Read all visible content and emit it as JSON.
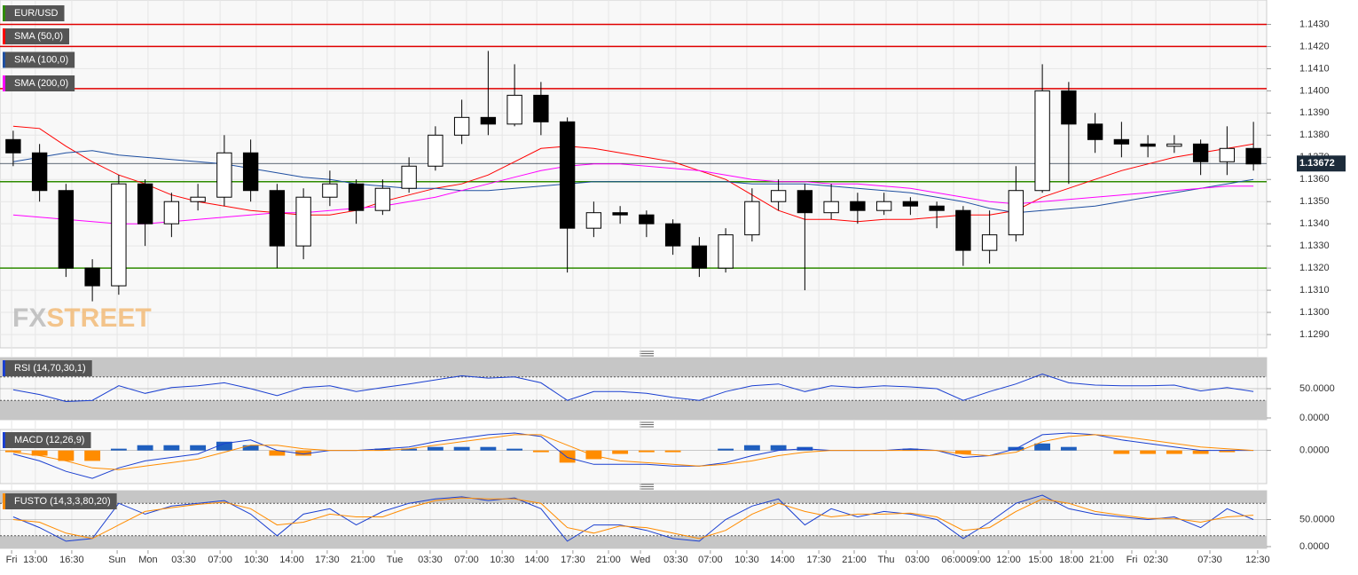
{
  "chart_data": [
    {
      "type": "candlestick",
      "title": "EUR/USD",
      "title_color": "#2e8b00",
      "watermark": [
        "FX",
        "STREET"
      ],
      "xlim": [
        -0.5,
        47.5
      ],
      "xticks": [
        {
          "value": -0.06,
          "label": "Fri"
        },
        {
          "value": 0.84,
          "label": "13:00"
        },
        {
          "value": 2.22,
          "label": "16:30"
        },
        {
          "value": 3.94,
          "label": "Sun"
        },
        {
          "value": 5.11,
          "label": "Mon"
        },
        {
          "value": 6.46,
          "label": "03:30"
        },
        {
          "value": 7.84,
          "label": "07:00"
        },
        {
          "value": 9.21,
          "label": "10:30"
        },
        {
          "value": 10.56,
          "label": "14:00"
        },
        {
          "value": 11.9,
          "label": "17:30"
        },
        {
          "value": 13.25,
          "label": "21:00"
        },
        {
          "value": 14.46,
          "label": "Tue"
        },
        {
          "value": 15.8,
          "label": "03:30"
        },
        {
          "value": 17.18,
          "label": "07:00"
        },
        {
          "value": 18.53,
          "label": "10:30"
        },
        {
          "value": 19.84,
          "label": "14:00"
        },
        {
          "value": 21.21,
          "label": "17:30"
        },
        {
          "value": 22.56,
          "label": "21:00"
        },
        {
          "value": 23.77,
          "label": "Wed"
        },
        {
          "value": 25.11,
          "label": "03:30"
        },
        {
          "value": 26.42,
          "label": "07:00"
        },
        {
          "value": 27.8,
          "label": "10:30"
        },
        {
          "value": 29.15,
          "label": "14:00"
        },
        {
          "value": 30.53,
          "label": "17:30"
        },
        {
          "value": 31.87,
          "label": "21:00"
        },
        {
          "value": 33.08,
          "label": "Thu"
        },
        {
          "value": 34.26,
          "label": "03:00"
        },
        {
          "value": 35.64,
          "label": "06:00"
        },
        {
          "value": 36.58,
          "label": "09:00"
        },
        {
          "value": 37.72,
          "label": "12:00"
        },
        {
          "value": 38.93,
          "label": "15:00"
        },
        {
          "value": 40.1,
          "label": "18:00"
        },
        {
          "value": 41.25,
          "label": "21:00"
        },
        {
          "value": 42.39,
          "label": "Fri"
        },
        {
          "value": 43.3,
          "label": "02:30"
        },
        {
          "value": 45.35,
          "label": "07:30"
        },
        {
          "value": 47.16,
          "label": "12:30"
        }
      ],
      "ylim": [
        1.1284,
        1.1441
      ],
      "yticks": [
        {
          "value": 1.129,
          "label": "1.1290"
        },
        {
          "value": 1.13,
          "label": "1.1300"
        },
        {
          "value": 1.131,
          "label": "1.1310"
        },
        {
          "value": 1.132,
          "label": "1.1320"
        },
        {
          "value": 1.133,
          "label": "1.1330"
        },
        {
          "value": 1.134,
          "label": "1.1340"
        },
        {
          "value": 1.135,
          "label": "1.1350"
        },
        {
          "value": 1.136,
          "label": "1.1360"
        },
        {
          "value": 1.137,
          "label": "1.1370"
        },
        {
          "value": 1.138,
          "label": "1.1380"
        },
        {
          "value": 1.139,
          "label": "1.1390"
        },
        {
          "value": 1.14,
          "label": "1.1400"
        },
        {
          "value": 1.141,
          "label": "1.1410"
        },
        {
          "value": 1.142,
          "label": "1.1420"
        },
        {
          "value": 1.143,
          "label": "1.1430"
        }
      ],
      "grid": true,
      "ohlc": [
        [
          1.1378,
          1.1382,
          1.1366,
          1.1372
        ],
        [
          1.1372,
          1.1376,
          1.135,
          1.1355
        ],
        [
          1.1355,
          1.1358,
          1.1316,
          1.132
        ],
        [
          1.132,
          1.1324,
          1.1305,
          1.1312
        ],
        [
          1.1312,
          1.1362,
          1.1308,
          1.1358
        ],
        [
          1.1358,
          1.136,
          1.133,
          1.134
        ],
        [
          1.134,
          1.1354,
          1.1334,
          1.135
        ],
        [
          1.135,
          1.1358,
          1.1346,
          1.1352
        ],
        [
          1.1352,
          1.138,
          1.1348,
          1.1372
        ],
        [
          1.1372,
          1.1378,
          1.135,
          1.1355
        ],
        [
          1.1355,
          1.1358,
          1.132,
          1.133
        ],
        [
          1.133,
          1.1356,
          1.1324,
          1.1352
        ],
        [
          1.1352,
          1.1364,
          1.1348,
          1.1358
        ],
        [
          1.1358,
          1.136,
          1.134,
          1.1346
        ],
        [
          1.1346,
          1.136,
          1.1344,
          1.1356
        ],
        [
          1.1356,
          1.137,
          1.1354,
          1.1366
        ],
        [
          1.1366,
          1.1384,
          1.1364,
          1.138
        ],
        [
          1.138,
          1.1396,
          1.1376,
          1.1388
        ],
        [
          1.1388,
          1.1418,
          1.138,
          1.1385
        ],
        [
          1.1385,
          1.1412,
          1.1384,
          1.1398
        ],
        [
          1.1398,
          1.1404,
          1.138,
          1.1386
        ],
        [
          1.1386,
          1.1388,
          1.1318,
          1.1338
        ],
        [
          1.1338,
          1.135,
          1.1334,
          1.1345
        ],
        [
          1.1345,
          1.1348,
          1.134,
          1.1344
        ],
        [
          1.1344,
          1.1346,
          1.1334,
          1.134
        ],
        [
          1.134,
          1.1342,
          1.1326,
          1.133
        ],
        [
          1.133,
          1.1334,
          1.1316,
          1.132
        ],
        [
          1.132,
          1.1338,
          1.1318,
          1.1335
        ],
        [
          1.1335,
          1.1356,
          1.1332,
          1.135
        ],
        [
          1.135,
          1.136,
          1.1346,
          1.1355
        ],
        [
          1.1355,
          1.1358,
          1.131,
          1.1345
        ],
        [
          1.1345,
          1.1358,
          1.1342,
          1.135
        ],
        [
          1.135,
          1.1354,
          1.134,
          1.1346
        ],
        [
          1.1346,
          1.1354,
          1.1344,
          1.135
        ],
        [
          1.135,
          1.1352,
          1.1344,
          1.1348
        ],
        [
          1.1348,
          1.135,
          1.1338,
          1.1346
        ],
        [
          1.1346,
          1.1348,
          1.1321,
          1.1328
        ],
        [
          1.1328,
          1.1346,
          1.1322,
          1.1335
        ],
        [
          1.1335,
          1.1366,
          1.1332,
          1.1355
        ],
        [
          1.1355,
          1.1412,
          1.1354,
          1.14
        ],
        [
          1.14,
          1.1404,
          1.1358,
          1.1385
        ],
        [
          1.1385,
          1.139,
          1.1372,
          1.1378
        ],
        [
          1.1378,
          1.1386,
          1.137,
          1.1376
        ],
        [
          1.1376,
          1.138,
          1.137,
          1.1375
        ],
        [
          1.1375,
          1.138,
          1.1372,
          1.1376
        ],
        [
          1.1376,
          1.1378,
          1.1362,
          1.1368
        ],
        [
          1.1368,
          1.1384,
          1.1362,
          1.1374
        ],
        [
          1.1374,
          1.1386,
          1.1364,
          1.1367
        ]
      ],
      "series": [
        {
          "name": "SMA (50,0)",
          "color": "#ff0000",
          "values": [
            1.1384,
            1.1383,
            1.1375,
            1.1368,
            1.1362,
            1.1358,
            1.1353,
            1.135,
            1.1348,
            1.1346,
            1.1345,
            1.1344,
            1.1344,
            1.1346,
            1.135,
            1.1353,
            1.1356,
            1.1358,
            1.1362,
            1.1368,
            1.1374,
            1.1375,
            1.1374,
            1.1372,
            1.137,
            1.1368,
            1.1364,
            1.136,
            1.1353,
            1.1346,
            1.1342,
            1.1342,
            1.1341,
            1.1342,
            1.1342,
            1.1343,
            1.1344,
            1.1344,
            1.1346,
            1.1352,
            1.1356,
            1.136,
            1.1364,
            1.1367,
            1.137,
            1.1372,
            1.1374,
            1.1376
          ]
        },
        {
          "name": "SMA (100,0)",
          "color": "#1f4fa0",
          "values": [
            1.1368,
            1.137,
            1.1372,
            1.1373,
            1.1371,
            1.137,
            1.1369,
            1.1368,
            1.1367,
            1.1365,
            1.1363,
            1.1361,
            1.136,
            1.1358,
            1.1357,
            1.1356,
            1.1356,
            1.1355,
            1.1355,
            1.1356,
            1.1357,
            1.1358,
            1.1359,
            1.1359,
            1.1359,
            1.1359,
            1.1359,
            1.1359,
            1.1358,
            1.1358,
            1.1358,
            1.1357,
            1.1356,
            1.1355,
            1.1354,
            1.1352,
            1.135,
            1.1347,
            1.1345,
            1.1346,
            1.1347,
            1.1348,
            1.135,
            1.1352,
            1.1354,
            1.1356,
            1.1358,
            1.136
          ]
        },
        {
          "name": "SMA (200,0)",
          "color": "#ff00ff",
          "values": [
            1.1344,
            1.1343,
            1.1342,
            1.1341,
            1.134,
            1.134,
            1.1341,
            1.1342,
            1.1343,
            1.1344,
            1.1345,
            1.1345,
            1.1346,
            1.1347,
            1.1348,
            1.135,
            1.1352,
            1.1355,
            1.1358,
            1.1361,
            1.1364,
            1.1366,
            1.1367,
            1.1367,
            1.1366,
            1.1365,
            1.1364,
            1.1362,
            1.136,
            1.1359,
            1.1359,
            1.1358,
            1.1358,
            1.1357,
            1.1356,
            1.1354,
            1.1352,
            1.135,
            1.1349,
            1.135,
            1.1351,
            1.1352,
            1.1353,
            1.1354,
            1.1355,
            1.1356,
            1.1357,
            1.1357
          ]
        }
      ],
      "levels": [
        {
          "value": 1.143,
          "color": "#e00000"
        },
        {
          "value": 1.142,
          "color": "#e00000"
        },
        {
          "value": 1.1401,
          "color": "#e00000"
        },
        {
          "value": 1.1359,
          "color": "#2e8b00"
        },
        {
          "value": 1.132,
          "color": "#2e8b00"
        }
      ],
      "last_price": 1.13672
    },
    {
      "type": "line",
      "title": "RSI (14,70,30,1)",
      "title_color": "#1a3fd0",
      "ylim": [
        0,
        100
      ],
      "yticks": [
        {
          "value": 50,
          "label": "50.0000"
        },
        {
          "value": 0,
          "label": "0.0000"
        }
      ],
      "bands": [
        70,
        30
      ],
      "series": [
        {
          "color": "#1a3fd0",
          "values": [
            48,
            40,
            28,
            30,
            55,
            42,
            52,
            55,
            60,
            50,
            38,
            52,
            55,
            45,
            52,
            58,
            65,
            72,
            68,
            70,
            60,
            30,
            45,
            45,
            42,
            35,
            30,
            45,
            55,
            58,
            45,
            55,
            52,
            55,
            53,
            50,
            30,
            45,
            58,
            75,
            60,
            56,
            55,
            55,
            56,
            46,
            52,
            45
          ]
        }
      ]
    },
    {
      "type": "macd",
      "title": "MACD (12,26,9)",
      "title_color": "#1a3fd0",
      "ylim": [
        -0.0018,
        0.0011
      ],
      "yticks": [
        {
          "value": 0,
          "label": "0.0000"
        }
      ],
      "series": [
        {
          "type": "bar",
          "color": "#1f5fbf",
          "negative_color": "#ff8c00",
          "values": [
            -0.0001,
            -0.0003,
            -0.0006,
            -0.0006,
            0.0001,
            0.0003,
            0.0003,
            0.0003,
            0.0005,
            0.0003,
            -0.0003,
            -0.0003,
            0,
            0,
            0.0001,
            0.0001,
            0.0002,
            0.0002,
            0.0002,
            0.0001,
            -0.0001,
            -0.0007,
            -0.0005,
            -0.0002,
            -0.0001,
            -0.0001,
            0,
            0.0001,
            0.0003,
            0.0003,
            0.0002,
            0,
            0,
            0,
            0.0001,
            0,
            -0.0002,
            0,
            0.0002,
            0.0004,
            0.0002,
            0,
            -0.0002,
            -0.0002,
            -0.0002,
            -0.0002,
            -0.0001,
            0
          ]
        },
        {
          "color": "#1a3fd0",
          "values": [
            -0.0002,
            -0.0006,
            -0.0012,
            -0.0016,
            -0.001,
            -0.0006,
            -0.0004,
            -0.0002,
            0.0004,
            0.0006,
            0,
            -0.0002,
            0,
            0,
            0.0001,
            0.0002,
            0.0005,
            0.0007,
            0.0009,
            0.001,
            0.0008,
            -0.0004,
            -0.0008,
            -0.0008,
            -0.0008,
            -0.0009,
            -0.0009,
            -0.0007,
            -0.0003,
            0,
            0.0001,
            0,
            0,
            0,
            0.0001,
            0,
            -0.0004,
            -0.0003,
            0.0001,
            0.0009,
            0.001,
            0.0009,
            0.0006,
            0.0004,
            0.0002,
            0,
            0,
            0
          ]
        },
        {
          "color": "#ff8c00",
          "values": [
            -0.0001,
            -0.0003,
            -0.0006,
            -0.001,
            -0.0011,
            -0.0009,
            -0.0007,
            -0.0005,
            -0.0001,
            0.0003,
            0.0003,
            0.0001,
            0,
            0,
            0,
            0.0001,
            0.0003,
            0.0005,
            0.0007,
            0.0009,
            0.0009,
            0.0003,
            -0.0003,
            -0.0006,
            -0.0007,
            -0.0008,
            -0.0009,
            -0.0008,
            -0.0006,
            -0.0003,
            -0.0001,
            0,
            0,
            0,
            0,
            0,
            -0.0002,
            -0.0003,
            -0.0001,
            0.0005,
            0.0008,
            0.0009,
            0.0008,
            0.0006,
            0.0004,
            0.0002,
            0.0001,
            0
          ]
        }
      ]
    },
    {
      "type": "line",
      "title": "FUSTO (14,3,3,80,20)",
      "title_color": "#ff8c00",
      "ylim": [
        0,
        100
      ],
      "yticks": [
        {
          "value": 50,
          "label": "50.0000"
        },
        {
          "value": 0,
          "label": "0.0000"
        }
      ],
      "bands": [
        80,
        20
      ],
      "series": [
        {
          "color": "#1a3fd0",
          "values": [
            55,
            35,
            10,
            15,
            80,
            60,
            75,
            80,
            85,
            60,
            20,
            60,
            70,
            40,
            65,
            80,
            88,
            92,
            85,
            90,
            70,
            10,
            40,
            40,
            30,
            15,
            10,
            50,
            75,
            88,
            40,
            70,
            55,
            65,
            60,
            50,
            15,
            45,
            80,
            95,
            70,
            60,
            55,
            50,
            55,
            35,
            70,
            50
          ]
        },
        {
          "color": "#ff8c00",
          "values": [
            50,
            45,
            25,
            15,
            40,
            65,
            72,
            78,
            82,
            70,
            40,
            45,
            60,
            55,
            55,
            72,
            85,
            90,
            88,
            88,
            80,
            35,
            25,
            38,
            35,
            25,
            15,
            30,
            60,
            80,
            65,
            55,
            60,
            60,
            62,
            55,
            30,
            35,
            65,
            88,
            80,
            65,
            58,
            52,
            52,
            45,
            55,
            58
          ]
        }
      ]
    }
  ]
}
